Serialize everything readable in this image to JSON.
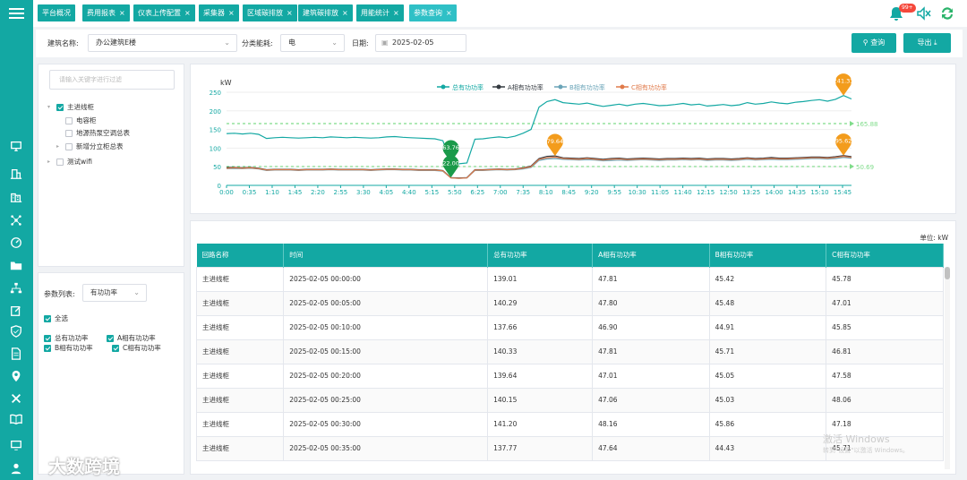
{
  "tabs": [
    {
      "label": "平台概况",
      "close": ""
    },
    {
      "label": "费用报表",
      "close": "×"
    },
    {
      "label": "仪表上传配置",
      "close": "×"
    },
    {
      "label": "采集器",
      "close": "×"
    },
    {
      "label": "区域碳排放",
      "close": "×"
    },
    {
      "label": "建筑碳排放",
      "close": "×"
    },
    {
      "label": "用能统计",
      "close": "×"
    },
    {
      "label": "参数查询",
      "close": "×"
    }
  ],
  "notification_badge": "99+",
  "filters": {
    "building_label": "建筑名称:",
    "building_value": "办公建筑E楼",
    "category_label": "分类能耗:",
    "category_value": "电",
    "date_label": "日期:",
    "date_value": "2025-02-05",
    "query_button": "查询",
    "export_button": "导出"
  },
  "tree": {
    "search_placeholder": "请输入关键字进行过滤",
    "nodes": [
      {
        "label": "主进线柜",
        "checked": true
      },
      {
        "label": "电容柜",
        "checked": false
      },
      {
        "label": "地源热泵空调总表",
        "checked": false
      },
      {
        "label": "新增分立柜总表",
        "checked": false
      },
      {
        "label": "测试wifi",
        "checked": false
      }
    ]
  },
  "params": {
    "list_label": "参数列表:",
    "list_value": "有功功率",
    "select_all": "全选",
    "options": [
      "总有功功率",
      "A相有功功率",
      "B相有功功率",
      "C相有功功率"
    ]
  },
  "chart_data": {
    "type": "line",
    "ylabel": "kW",
    "ylim": [
      0,
      250
    ],
    "yticks": [
      0,
      50,
      100,
      150,
      200,
      250
    ],
    "xticks": [
      "0:00",
      "0:35",
      "1:10",
      "1:45",
      "2:20",
      "2:55",
      "3:30",
      "4:05",
      "4:40",
      "5:15",
      "5:50",
      "6:25",
      "7:00",
      "7:35",
      "8:10",
      "8:45",
      "9:20",
      "9:55",
      "10:30",
      "11:05",
      "11:40",
      "12:15",
      "12:50",
      "13:25",
      "14:00",
      "14:35",
      "15:10",
      "15:45"
    ],
    "series": [
      {
        "name": "总有功功率",
        "color": "#13a8a3",
        "values": [
          139,
          140,
          138,
          140,
          137,
          126,
          128,
          129,
          128,
          127,
          128,
          129,
          128,
          130,
          129,
          128,
          129,
          128,
          127,
          128,
          130,
          131,
          129,
          128,
          127,
          126,
          125,
          120,
          62,
          58,
          60,
          124,
          125,
          128,
          130,
          128,
          132,
          140,
          150,
          210,
          225,
          230,
          222,
          220,
          218,
          221,
          216,
          212,
          215,
          218,
          214,
          218,
          220,
          217,
          214,
          215,
          217,
          220,
          216,
          218,
          213,
          215,
          217,
          214,
          216,
          222,
          218,
          220,
          224,
          221,
          219,
          223,
          225,
          228,
          230,
          226,
          231,
          241,
          232
        ]
      },
      {
        "name": "A相有功功率",
        "color": "#343a40",
        "values": [
          48,
          48,
          47,
          48,
          46,
          42,
          43,
          43,
          43,
          42,
          43,
          43,
          43,
          44,
          43,
          43,
          43,
          43,
          42,
          43,
          44,
          44,
          43,
          43,
          42,
          42,
          42,
          40,
          21,
          20,
          21,
          42,
          42,
          43,
          44,
          43,
          44,
          47,
          52,
          72,
          78,
          79,
          74,
          73,
          72,
          74,
          72,
          70,
          72,
          73,
          71,
          72,
          73,
          72,
          71,
          72,
          72,
          73,
          72,
          73,
          71,
          72,
          72,
          71,
          72,
          74,
          72,
          73,
          75,
          73,
          73,
          74,
          75,
          76,
          76,
          75,
          77,
          80,
          77
        ]
      },
      {
        "name": "B相有功功率",
        "color": "#6aa4b8",
        "values": [
          45,
          45,
          45,
          46,
          44,
          40,
          41,
          41,
          41,
          40,
          41,
          41,
          41,
          42,
          41,
          41,
          41,
          41,
          40,
          41,
          42,
          42,
          41,
          41,
          40,
          40,
          40,
          38,
          20,
          19,
          20,
          40,
          40,
          41,
          42,
          41,
          42,
          44,
          48,
          67,
          71,
          72,
          70,
          69,
          68,
          69,
          68,
          66,
          67,
          68,
          67,
          68,
          69,
          68,
          67,
          68,
          68,
          69,
          68,
          69,
          67,
          68,
          68,
          67,
          68,
          70,
          68,
          69,
          70,
          69,
          69,
          70,
          71,
          72,
          72,
          71,
          72,
          75,
          73
        ]
      },
      {
        "name": "C相有功功率",
        "color": "#e07a4a",
        "values": [
          46,
          47,
          46,
          47,
          45,
          41,
          42,
          42,
          42,
          41,
          42,
          42,
          42,
          43,
          42,
          42,
          42,
          42,
          41,
          42,
          43,
          43,
          42,
          42,
          41,
          41,
          41,
          39,
          20,
          19,
          20,
          41,
          41,
          42,
          43,
          42,
          43,
          46,
          50,
          70,
          74,
          76,
          72,
          71,
          70,
          72,
          70,
          68,
          70,
          71,
          69,
          70,
          71,
          70,
          69,
          70,
          70,
          71,
          70,
          71,
          69,
          70,
          70,
          69,
          70,
          72,
          70,
          71,
          72,
          71,
          71,
          72,
          73,
          74,
          74,
          73,
          75,
          78,
          75
        ]
      }
    ],
    "avg_lines": [
      {
        "value": 165.88,
        "label": "165.88"
      },
      {
        "value": 50.69,
        "label": "50.69"
      }
    ],
    "markers": [
      {
        "label": "63.76",
        "color": "#1a9a4a",
        "index": 28
      },
      {
        "label": "22.00",
        "color": "#1a9a4a",
        "index": 28
      },
      {
        "label": "79.64",
        "color": "#f39c1c",
        "index": 41
      },
      {
        "label": "241.33",
        "color": "#f39c1c",
        "index": 77
      },
      {
        "label": "95.62",
        "color": "#f39c1c",
        "index": 77
      }
    ]
  },
  "table": {
    "unit": "单位:  kW",
    "columns": [
      "回路名称",
      "时间",
      "总有功功率",
      "A相有功功率",
      "B相有功功率",
      "C相有功功率"
    ],
    "rows": [
      [
        "主进线柜",
        "2025-02-05 00:00:00",
        "139.01",
        "47.81",
        "45.42",
        "45.78"
      ],
      [
        "主进线柜",
        "2025-02-05 00:05:00",
        "140.29",
        "47.80",
        "45.48",
        "47.01"
      ],
      [
        "主进线柜",
        "2025-02-05 00:10:00",
        "137.66",
        "46.90",
        "44.91",
        "45.85"
      ],
      [
        "主进线柜",
        "2025-02-05 00:15:00",
        "140.33",
        "47.81",
        "45.71",
        "46.81"
      ],
      [
        "主进线柜",
        "2025-02-05 00:20:00",
        "139.64",
        "47.01",
        "45.05",
        "47.58"
      ],
      [
        "主进线柜",
        "2025-02-05 00:25:00",
        "140.15",
        "47.06",
        "45.03",
        "48.06"
      ],
      [
        "主进线柜",
        "2025-02-05 00:30:00",
        "141.20",
        "48.16",
        "45.86",
        "47.18"
      ],
      [
        "主进线柜",
        "2025-02-05 00:35:00",
        "137.77",
        "47.64",
        "44.43",
        "45.71"
      ]
    ]
  },
  "watermarks": {
    "activate_title": "激活 Windows",
    "activate_sub": "转到\"设置\"以激活 Windows。",
    "brand": "大数跨境"
  }
}
